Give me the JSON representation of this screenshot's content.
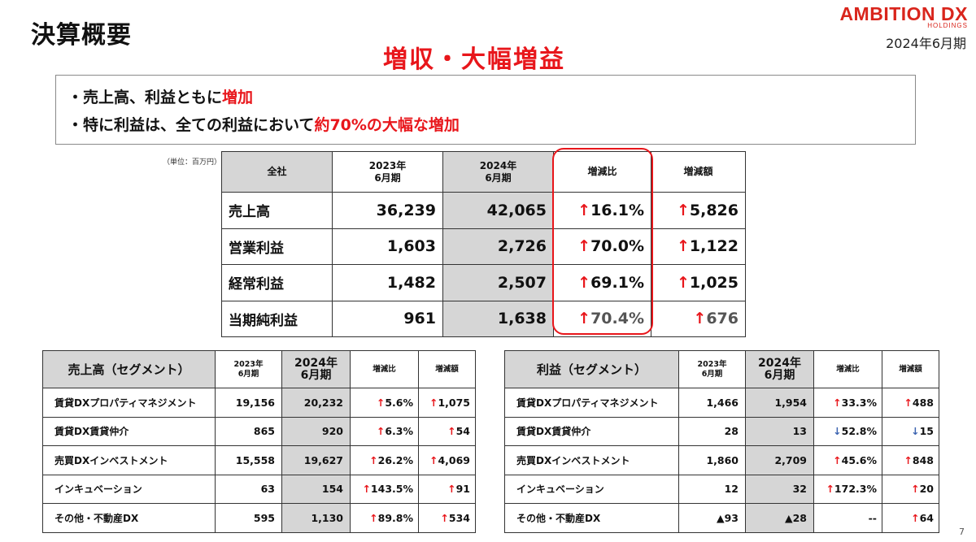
{
  "header": {
    "title": "決算概要",
    "logo_main": "AMBITION DX",
    "logo_sub": "HOLDINGS",
    "period": "2024年6月期",
    "headline": "増収・大幅増益"
  },
  "summary": {
    "line1_prefix": "・売上高、利益ともに",
    "line1_highlight": "増加",
    "line2_prefix": "・特に利益は、全ての利益において",
    "line2_highlight": "約70%の大幅な増加"
  },
  "unit_note": "（単位：百万円）",
  "main_table": {
    "headers": [
      "全社",
      "2023年\n6月期",
      "2024年\n6月期",
      "増減比",
      "増減額"
    ],
    "rows": [
      {
        "label": "売上高",
        "y2023": "36,239",
        "y2024": "42,065",
        "ratio": "16.1%",
        "amount": "5,826"
      },
      {
        "label": "営業利益",
        "y2023": "1,603",
        "y2024": "2,726",
        "ratio": "70.0%",
        "amount": "1,122"
      },
      {
        "label": "経常利益",
        "y2023": "1,482",
        "y2024": "2,507",
        "ratio": "69.1%",
        "amount": "1,025"
      },
      {
        "label": "当期純利益",
        "y2023": "961",
        "y2024": "1,638",
        "ratio": "70.4%",
        "amount": "676"
      }
    ]
  },
  "sales_segment": {
    "headers": [
      "売上高（セグメント）",
      "2023年\n6月期",
      "2024年\n6月期",
      "増減比",
      "増減額"
    ],
    "rows": [
      {
        "label": "賃貸DXプロパティマネジメント",
        "y2023": "19,156",
        "y2024": "20,232",
        "ratio": "5.6%",
        "amount": "1,075"
      },
      {
        "label": "賃貸DX賃貸仲介",
        "y2023": "865",
        "y2024": "920",
        "ratio": "6.3%",
        "amount": "54"
      },
      {
        "label": "売買DXインベストメント",
        "y2023": "15,558",
        "y2024": "19,627",
        "ratio": "26.2%",
        "amount": "4,069"
      },
      {
        "label": "インキュベーション",
        "y2023": "63",
        "y2024": "154",
        "ratio": "143.5%",
        "amount": "91"
      },
      {
        "label": "その他・不動産DX",
        "y2023": "595",
        "y2024": "1,130",
        "ratio": "89.8%",
        "amount": "534"
      }
    ]
  },
  "profit_segment": {
    "headers": [
      "利益（セグメント）",
      "2023年\n6月期",
      "2024年\n6月期",
      "増減比",
      "増減額"
    ],
    "rows": [
      {
        "label": "賃貸DXプロパティマネジメント",
        "y2023": "1,466",
        "y2024": "1,954",
        "ratio": "33.3%",
        "amount": "488"
      },
      {
        "label": "賃貸DX賃貸仲介",
        "y2023": "28",
        "y2024": "13",
        "ratio": "52.8%",
        "amount": "15"
      },
      {
        "label": "売買DXインベストメント",
        "y2023": "1,860",
        "y2024": "2,709",
        "ratio": "45.6%",
        "amount": "848"
      },
      {
        "label": "インキュベーション",
        "y2023": "12",
        "y2024": "32",
        "ratio": "172.3%",
        "amount": "20"
      },
      {
        "label": "その他・不動産DX",
        "y2023": "▲93",
        "y2024": "▲28",
        "ratio": "--",
        "amount": "64"
      }
    ]
  },
  "arrows": {
    "up": "↑",
    "down": "↓"
  },
  "colors": {
    "accent_red": "#e8161b",
    "down_blue": "#3b63b0",
    "header_gray": "#d6d6d6"
  },
  "page_number": "7"
}
